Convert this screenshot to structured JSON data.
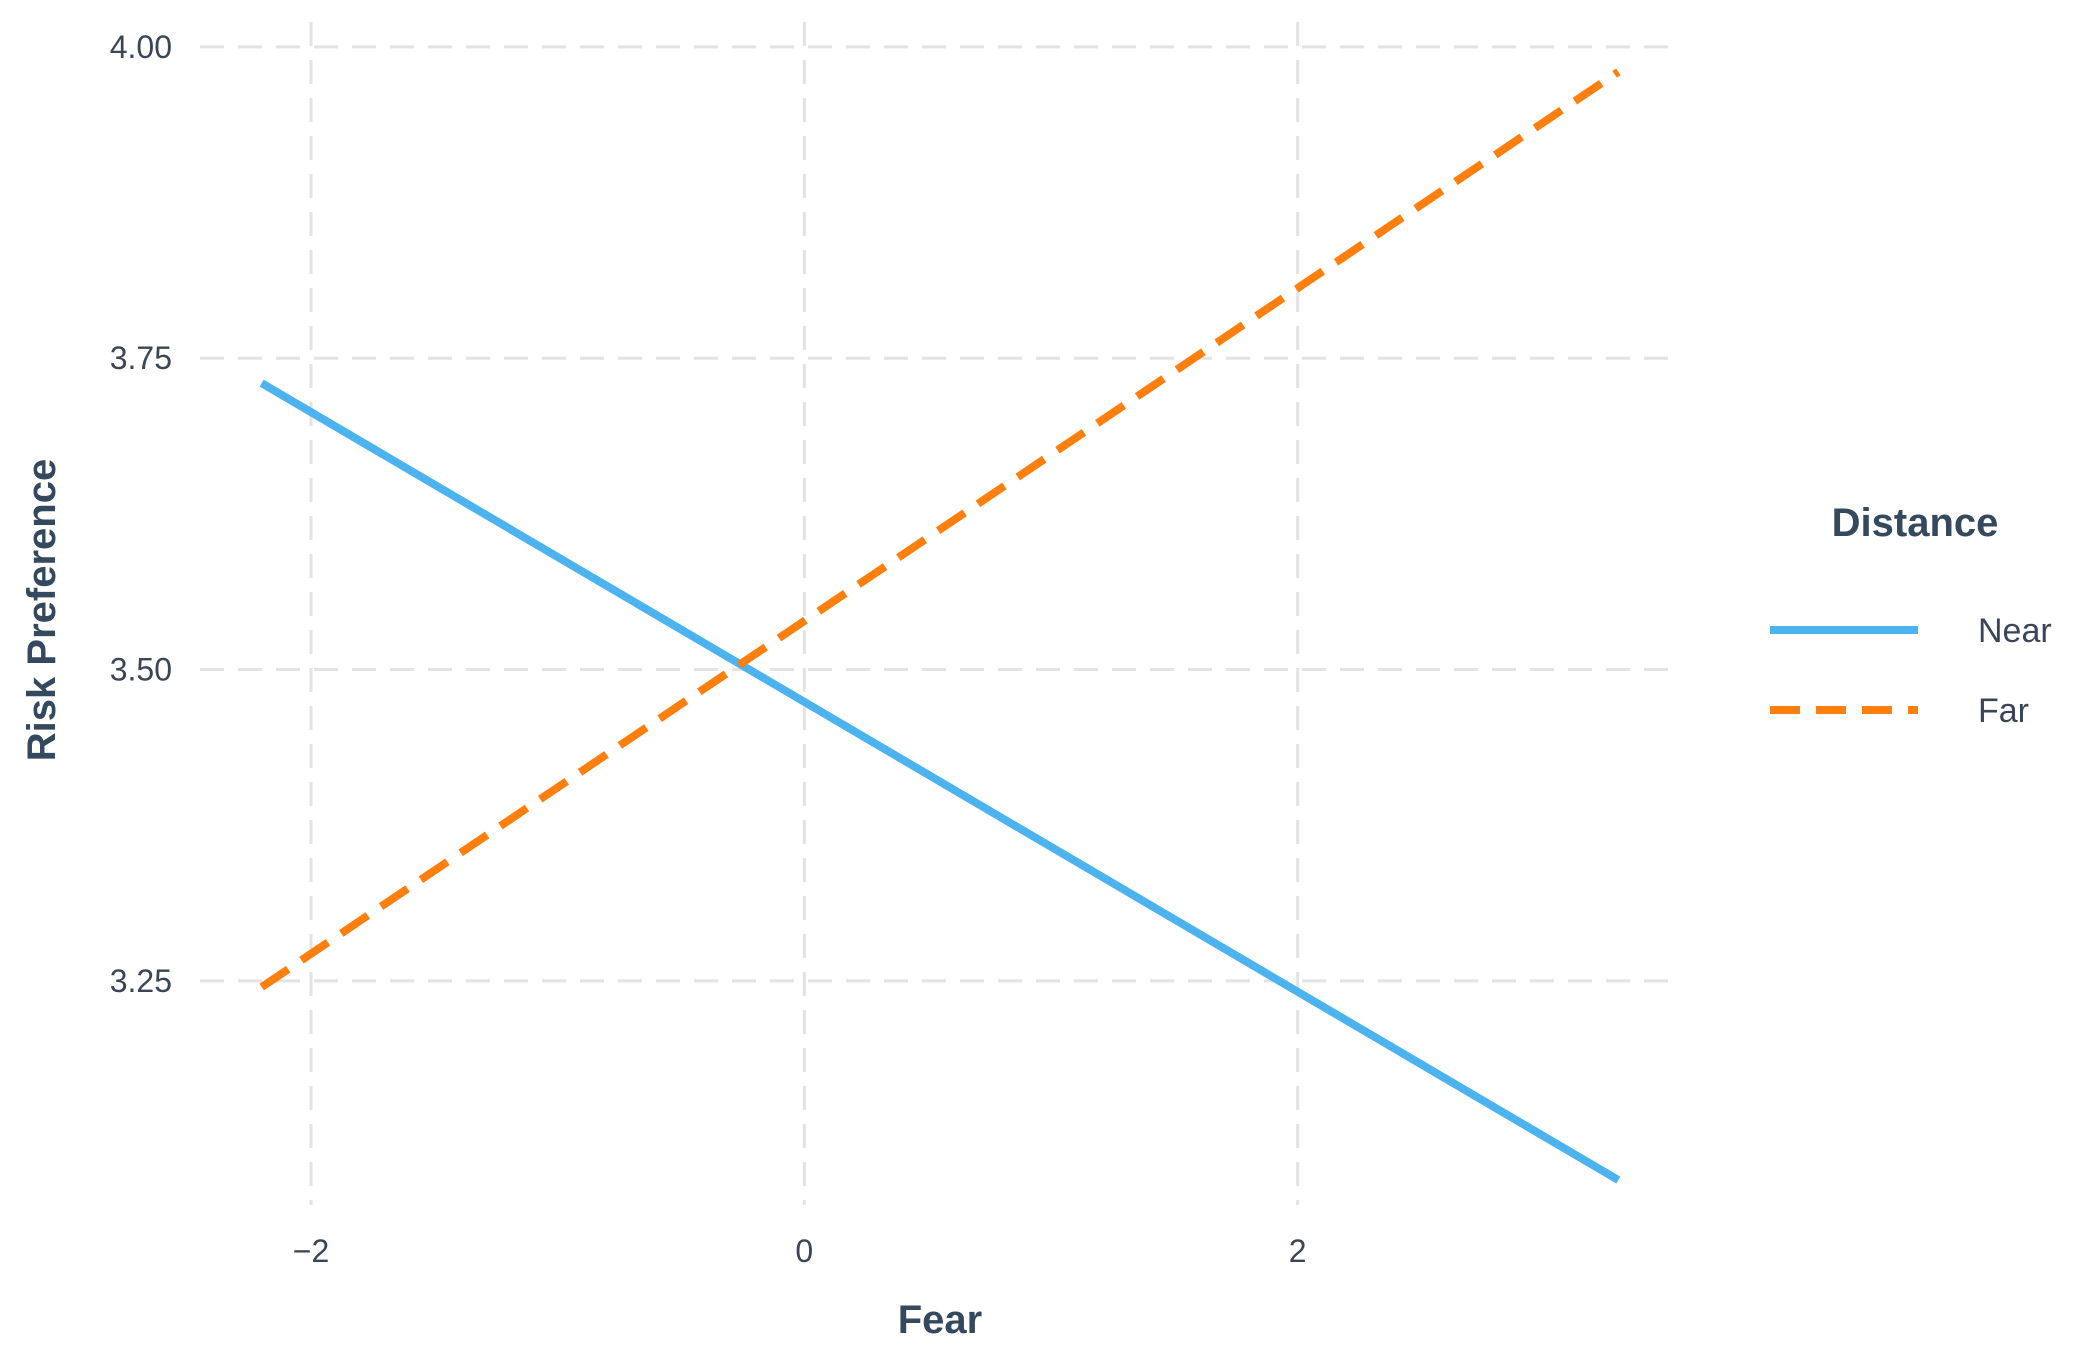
{
  "chart_data": {
    "type": "line",
    "title": "",
    "xlabel": "Fear",
    "ylabel": "Risk Preference",
    "xlim": [
      -2.45,
      3.55
    ],
    "ylim": [
      3.07,
      4.02
    ],
    "x_ticks": [
      -2,
      0,
      2
    ],
    "x_tick_labels": [
      "−2",
      "0",
      "2"
    ],
    "y_ticks": [
      3.25,
      3.5,
      3.75,
      4.0
    ],
    "y_tick_labels": [
      "3.25",
      "3.50",
      "3.75",
      "4.00"
    ],
    "grid": true,
    "legend": {
      "title": "Distance",
      "position": "right"
    },
    "series": [
      {
        "name": "Near",
        "color": "#4db3ef",
        "dash": "solid",
        "x": [
          -2.2,
          3.3
        ],
        "y": [
          3.73,
          3.09
        ]
      },
      {
        "name": "Far",
        "color": "#ff7f0e",
        "dash": "dashed",
        "x": [
          -2.2,
          3.3
        ],
        "y": [
          3.245,
          3.98
        ]
      }
    ]
  }
}
